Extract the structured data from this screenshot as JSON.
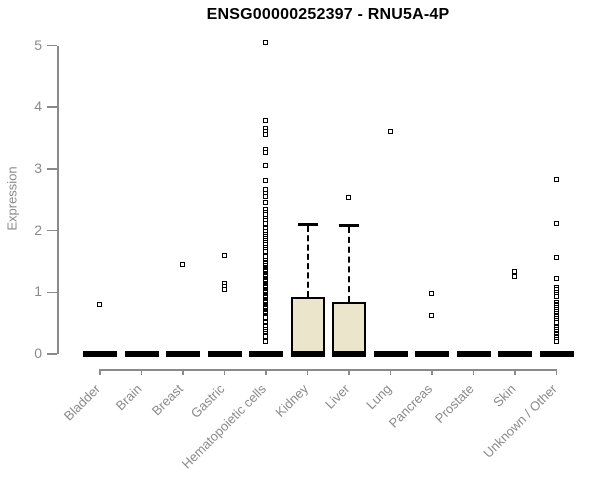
{
  "window": {
    "background": "#ffffff"
  },
  "chart_data": {
    "type": "boxplot",
    "title": "ENSG00000252397 - RNU5A-4P",
    "ylabel": "Expression",
    "xlabel": "",
    "ylim": [
      0,
      5.2
    ],
    "yticks": [
      0,
      1,
      2,
      3,
      4,
      5
    ],
    "grid": false,
    "legend": null,
    "colors": {
      "box_fill": "#ebe5cb",
      "box_border": "#000000",
      "marker": "#000000",
      "axis": "#8a8a8a",
      "title_text": "#000000"
    },
    "categories": [
      "Bladder",
      "Brain",
      "Breast",
      "Gastric",
      "Hematopoietic cells",
      "Kidney",
      "Liver",
      "Lung",
      "Pancreas",
      "Prostate",
      "Skin",
      "Unknown / Other"
    ],
    "series": [
      {
        "category": "Bladder",
        "q1": 0,
        "median": 0,
        "q3": 0,
        "whisker_low": 0,
        "whisker_high": 0,
        "outliers": [
          0.8
        ]
      },
      {
        "category": "Brain",
        "q1": 0,
        "median": 0,
        "q3": 0,
        "whisker_low": 0,
        "whisker_high": 0,
        "outliers": []
      },
      {
        "category": "Breast",
        "q1": 0,
        "median": 0,
        "q3": 0,
        "whisker_low": 0,
        "whisker_high": 0,
        "outliers": [
          1.45
        ]
      },
      {
        "category": "Gastric",
        "q1": 0,
        "median": 0,
        "q3": 0,
        "whisker_low": 0,
        "whisker_high": 0,
        "outliers": [
          1.6,
          1.15,
          1.1,
          1.05
        ]
      },
      {
        "category": "Hematopoietic cells",
        "q1": 0,
        "median": 0,
        "q3": 0,
        "whisker_low": 0,
        "whisker_high": 0,
        "outliers": [
          5.05,
          3.78,
          3.66,
          3.6,
          3.55,
          3.32,
          3.26,
          3.05,
          2.82,
          2.66,
          2.6,
          2.55,
          2.46,
          2.35,
          2.3,
          2.26,
          2.2,
          2.16,
          2.12,
          2.03,
          1.98,
          1.94,
          1.9,
          1.87,
          1.84,
          1.8,
          1.77,
          1.73,
          1.7,
          1.66,
          1.58,
          1.52,
          1.49,
          1.46,
          1.43,
          1.41,
          1.39,
          1.37,
          1.35,
          1.33,
          1.31,
          1.29,
          1.27,
          1.25,
          1.23,
          1.21,
          1.19,
          1.17,
          1.15,
          1.13,
          1.11,
          1.09,
          1.07,
          1.05,
          1.03,
          1.01,
          0.99,
          0.97,
          0.95,
          0.93,
          0.91,
          0.89,
          0.87,
          0.85,
          0.83,
          0.81,
          0.79,
          0.77,
          0.75,
          0.73,
          0.71,
          0.69,
          0.67,
          0.65,
          0.63,
          0.61,
          0.59,
          0.51,
          0.47,
          0.44,
          0.4,
          0.37,
          0.33,
          0.3,
          0.28,
          0.2
        ]
      },
      {
        "category": "Kidney",
        "q1": 0,
        "median": 0,
        "q3": 0.92,
        "whisker_low": 0,
        "whisker_high": 2.12,
        "outliers": []
      },
      {
        "category": "Liver",
        "q1": 0,
        "median": 0,
        "q3": 0.85,
        "whisker_low": 0,
        "whisker_high": 2.1,
        "outliers": [
          2.53
        ]
      },
      {
        "category": "Lung",
        "q1": 0,
        "median": 0,
        "q3": 0,
        "whisker_low": 0,
        "whisker_high": 0,
        "outliers": [
          3.6
        ]
      },
      {
        "category": "Pancreas",
        "q1": 0,
        "median": 0,
        "q3": 0,
        "whisker_low": 0,
        "whisker_high": 0,
        "outliers": [
          0.98,
          0.63
        ]
      },
      {
        "category": "Prostate",
        "q1": 0,
        "median": 0,
        "q3": 0,
        "whisker_low": 0,
        "whisker_high": 0,
        "outliers": []
      },
      {
        "category": "Skin",
        "q1": 0,
        "median": 0,
        "q3": 0,
        "whisker_low": 0,
        "whisker_high": 0,
        "outliers": [
          1.34,
          1.25
        ]
      },
      {
        "category": "Unknown / Other",
        "q1": 0,
        "median": 0,
        "q3": 0,
        "whisker_low": 0,
        "whisker_high": 0,
        "outliers": [
          2.83,
          2.11,
          1.56,
          1.22,
          1.08,
          1.04,
          1.0,
          0.96,
          0.93,
          0.84,
          0.81,
          0.78,
          0.75,
          0.72,
          0.69,
          0.66,
          0.63,
          0.6,
          0.57,
          0.54,
          0.51,
          0.43,
          0.4,
          0.37,
          0.34,
          0.31,
          0.28,
          0.26,
          0.23,
          0.21
        ]
      }
    ]
  }
}
